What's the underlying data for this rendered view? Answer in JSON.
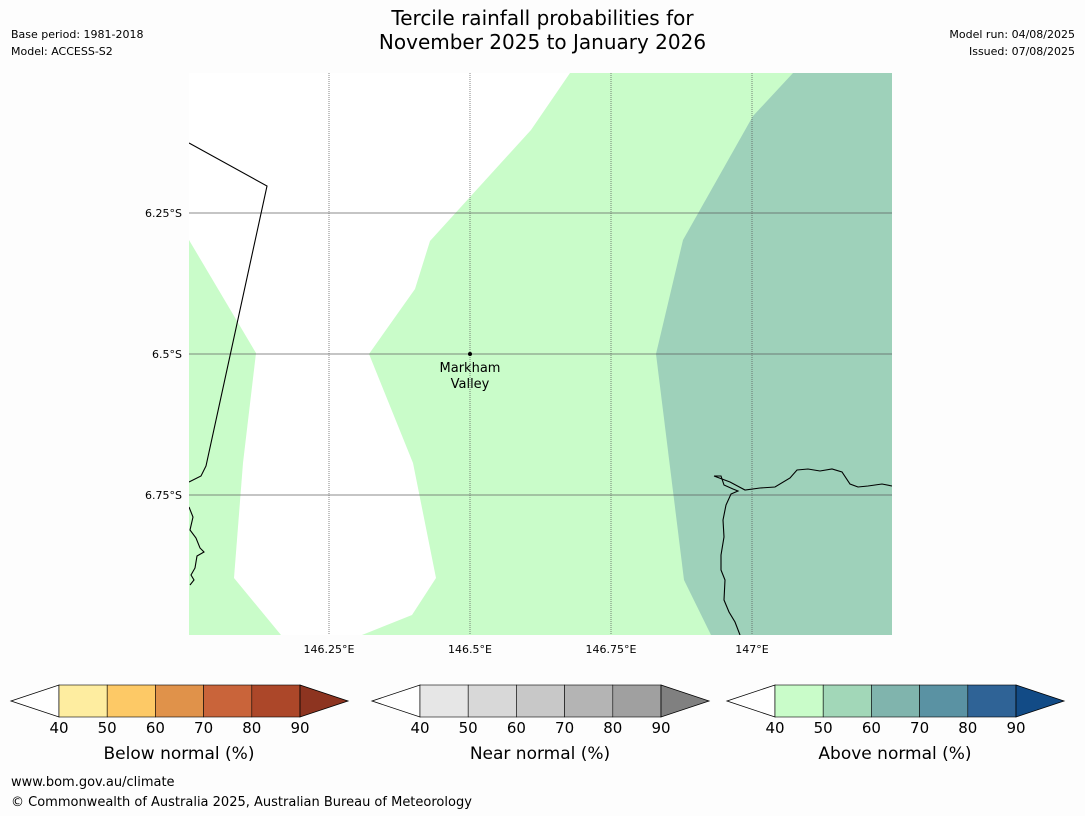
{
  "header": {
    "base_period": "Base period: 1981-2018",
    "model": "Model: ACCESS-S2",
    "title_line1": "Tercile rainfall probabilities for",
    "title_line2": "November 2025 to January 2026",
    "model_run": "Model run: 04/08/2025",
    "issued": "Issued: 07/08/2025"
  },
  "map": {
    "lat_labels": [
      "6.25°S",
      "6.5°S",
      "6.75°S"
    ],
    "lon_labels": [
      "146.25°E",
      "146.5°E",
      "146.75°E",
      "147°E"
    ],
    "place_line1": "Markham",
    "place_line2": "Valley",
    "colors": {
      "above_40_50": "#c9fcc9",
      "above_50_60": "#9ed1ba",
      "land_default": "#ffffff"
    }
  },
  "colorbars": [
    {
      "name": "below",
      "label": "Below normal (%)",
      "ticks": [
        "40",
        "50",
        "60",
        "70",
        "80",
        "90"
      ],
      "colors": [
        "#feeda0",
        "#fdc966",
        "#e0924a",
        "#c9643a",
        "#ac4729",
        "#8d3420"
      ]
    },
    {
      "name": "near",
      "label": "Near normal (%)",
      "ticks": [
        "40",
        "50",
        "60",
        "70",
        "80",
        "90"
      ],
      "colors": [
        "#e6e6e6",
        "#d8d8d8",
        "#c8c8c8",
        "#b4b4b4",
        "#a0a0a0",
        "#808080"
      ]
    },
    {
      "name": "above",
      "label": "Above normal (%)",
      "ticks": [
        "40",
        "50",
        "60",
        "70",
        "80",
        "90"
      ],
      "colors": [
        "#c9fcc9",
        "#a2d7b8",
        "#80b4ad",
        "#5a92a3",
        "#2f6396",
        "#124b86"
      ]
    }
  ],
  "footer": {
    "url": "www.bom.gov.au/climate",
    "copyright": "© Commonwealth of Australia 2025, Australian Bureau of Meteorology"
  }
}
